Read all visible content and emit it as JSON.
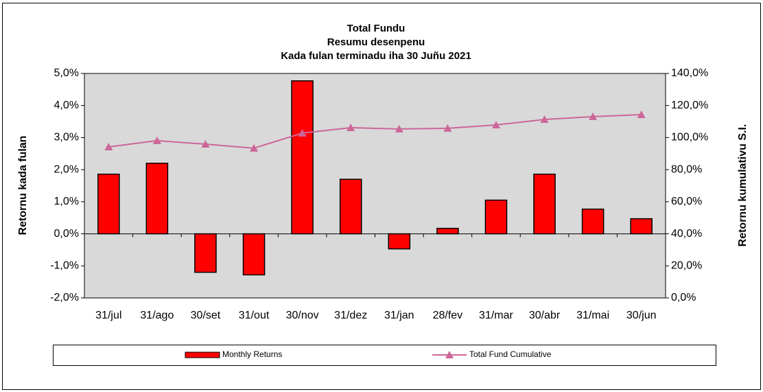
{
  "chart_data": {
    "type": "bar_line",
    "title": [
      "Total Fundu",
      "Resumu desenpenu",
      "Kada fulan terminadu iha 30 Juñu 2021"
    ],
    "ylabel": "Retornu kada fulan",
    "y2label": "Retornu kumulativu S.I.",
    "categories": [
      "31/jul",
      "31/ago",
      "30/set",
      "31/out",
      "30/nov",
      "31/dez",
      "31/jan",
      "28/fev",
      "31/mar",
      "30/abr",
      "31/mai",
      "30/jun"
    ],
    "series": [
      {
        "name": "Monthly Returns",
        "type": "bar",
        "color": "#ff0000",
        "values": [
          1.86,
          2.2,
          -1.2,
          -1.28,
          4.77,
          1.7,
          -0.47,
          0.17,
          1.05,
          1.86,
          0.77,
          0.47
        ]
      },
      {
        "name": "Total Fund Cumulative",
        "type": "line",
        "axis": "y2",
        "color": "#cc6699",
        "values": [
          94.2,
          98.1,
          95.9,
          93.4,
          102.8,
          106.2,
          105.4,
          105.8,
          107.9,
          111.3,
          113.1,
          114.3
        ]
      }
    ],
    "ylim": [
      -2,
      5
    ],
    "yticks": [
      {
        "value": -2,
        "label": "-2,0%"
      },
      {
        "value": -1,
        "label": "-1,0%"
      },
      {
        "value": 0,
        "label": "0,0%"
      },
      {
        "value": 1,
        "label": "1,0%"
      },
      {
        "value": 2,
        "label": "2,0%"
      },
      {
        "value": 3,
        "label": "3,0%"
      },
      {
        "value": 4,
        "label": "4,0%"
      },
      {
        "value": 5,
        "label": "5,0%"
      }
    ],
    "y2lim": [
      0,
      140
    ],
    "y2ticks": [
      {
        "value": 0,
        "label": "0,0%"
      },
      {
        "value": 20,
        "label": "20,0%"
      },
      {
        "value": 40,
        "label": "40,0%"
      },
      {
        "value": 60,
        "label": "60,0%"
      },
      {
        "value": 80,
        "label": "80,0%"
      },
      {
        "value": 100,
        "label": "100,0%"
      },
      {
        "value": 120,
        "label": "120,0%"
      },
      {
        "value": 140,
        "label": "140,0%"
      }
    ],
    "grid": false,
    "legend": "bottom"
  }
}
